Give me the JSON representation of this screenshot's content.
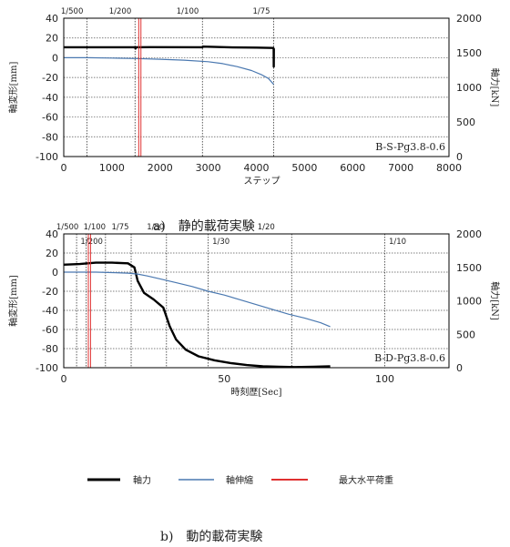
{
  "figure": {
    "caption_a": "a)　静的載荷実験",
    "caption_b": "b)　動的載荷実験"
  },
  "legend": {
    "items": [
      {
        "label": "軸力",
        "color": "#000000"
      },
      {
        "label": "軸伸縮",
        "color": "#4a78b0"
      },
      {
        "label": "最大水平荷重",
        "color": "#e03030"
      }
    ]
  },
  "chart_data": [
    {
      "type": "line",
      "xlabel": "ステップ",
      "ylabel": "軸変形[mm]",
      "y2label": "軸力[kN]",
      "xlim": [
        0,
        8000
      ],
      "ylim": [
        -100,
        40
      ],
      "y2lim": [
        0,
        2000
      ],
      "xticks": [
        0,
        1000,
        2000,
        3000,
        4000,
        5000,
        6000,
        7000,
        8000
      ],
      "yticks": [
        -100,
        -80,
        -60,
        -40,
        -20,
        0,
        20,
        40
      ],
      "y2ticks": [
        0,
        500,
        1000,
        1500,
        2000
      ],
      "specimen": "B-S-Pg3.8-0.6",
      "drift_markers": [
        {
          "x": 480,
          "label": "1/500"
        },
        {
          "x": 1480,
          "label": "1/200"
        },
        {
          "x": 2880,
          "label": "1/100"
        },
        {
          "x": 4360,
          "label": "1/75"
        }
      ],
      "max_horizontal_load_x": 1580,
      "series": [
        {
          "name": "軸力",
          "axis": "right",
          "x": [
            0,
            500,
            1000,
            1480,
            1490,
            1500,
            1800,
            2880,
            2890,
            3500,
            4000,
            4350,
            4360,
            4362,
            4364
          ],
          "y": [
            1580,
            1580,
            1580,
            1580,
            1560,
            1580,
            1582,
            1580,
            1590,
            1578,
            1575,
            1570,
            1560,
            1300,
            1560
          ]
        },
        {
          "name": "軸伸縮",
          "axis": "left",
          "x": [
            0,
            500,
            1000,
            1500,
            2000,
            2500,
            3000,
            3300,
            3600,
            3900,
            4100,
            4250,
            4360
          ],
          "y": [
            0,
            0,
            -0.3,
            -0.8,
            -1.5,
            -2.5,
            -4,
            -6,
            -9,
            -13,
            -17,
            -21,
            -27
          ]
        }
      ]
    },
    {
      "type": "line",
      "xlabel": "時刻歴[Sec]",
      "ylabel": "軸変形[mm]",
      "y2label": "軸力[kN]",
      "xlim": [
        0,
        120
      ],
      "ylim": [
        -100,
        40
      ],
      "y2lim": [
        0,
        2000
      ],
      "xticks": [
        0,
        50,
        100
      ],
      "yticks": [
        -100,
        -80,
        -60,
        -40,
        -20,
        0,
        20,
        40
      ],
      "y2ticks": [
        0,
        500,
        1000,
        1500,
        2000
      ],
      "specimen": "B-D-Pg3.8-0.6",
      "drift_markers": [
        {
          "x": 4,
          "label": "1/500"
        },
        {
          "x": 7,
          "label": "1/200"
        },
        {
          "x": 13,
          "label": "1/100"
        },
        {
          "x": 21,
          "label": "1/75"
        },
        {
          "x": 32,
          "label": "1/50"
        },
        {
          "x": 45,
          "label": "1/30"
        },
        {
          "x": 71,
          "label": "1/20"
        },
        {
          "x": 100,
          "label": "1/10"
        }
      ],
      "max_horizontal_load_x": 8,
      "series": [
        {
          "name": "軸力",
          "axis": "right",
          "x": [
            0,
            5,
            10,
            15,
            20,
            22,
            23,
            25,
            28,
            31,
            33,
            35,
            38,
            42,
            47,
            52,
            57,
            62,
            67,
            72,
            78,
            83
          ],
          "y": [
            1540,
            1550,
            1570,
            1570,
            1560,
            1500,
            1300,
            1120,
            1020,
            900,
            620,
            420,
            270,
            170,
            110,
            70,
            40,
            20,
            15,
            10,
            15,
            20
          ]
        },
        {
          "name": "軸伸縮",
          "axis": "left",
          "x": [
            0,
            5,
            10,
            15,
            20,
            23,
            26,
            30,
            35,
            40,
            45,
            50,
            55,
            60,
            65,
            70,
            75,
            80,
            83
          ],
          "y": [
            0,
            0,
            0,
            -0.5,
            -1,
            -2,
            -4,
            -7,
            -11,
            -15,
            -20,
            -24,
            -29,
            -34,
            -39,
            -44,
            -48,
            -53,
            -57
          ]
        }
      ]
    }
  ]
}
